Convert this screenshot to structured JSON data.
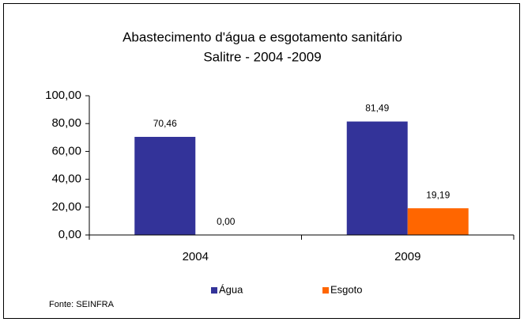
{
  "chart_data": {
    "type": "bar",
    "title": "Abastecimento d'água e esgotamento sanitário",
    "subtitle": "Salitre - 2004 -2009",
    "categories": [
      "2004",
      "2009"
    ],
    "series": [
      {
        "name": "Água",
        "color": "#333399",
        "values": [
          70.46,
          81.49
        ],
        "value_labels": [
          "70,46",
          "81,49"
        ]
      },
      {
        "name": "Esgoto",
        "color": "#FF6600",
        "values": [
          0,
          19.19
        ],
        "value_labels": [
          "0,00",
          "19,19"
        ]
      }
    ],
    "ylim": [
      0,
      100
    ],
    "yticks": [
      {
        "value": 0,
        "label": "0,00"
      },
      {
        "value": 20,
        "label": "20,00"
      },
      {
        "value": 40,
        "label": "40,00"
      },
      {
        "value": 60,
        "label": "60,00"
      },
      {
        "value": 80,
        "label": "80,00"
      },
      {
        "value": 100,
        "label": "100,00"
      }
    ],
    "legend": "bottom",
    "source": "Fonte: SEINFRA"
  }
}
